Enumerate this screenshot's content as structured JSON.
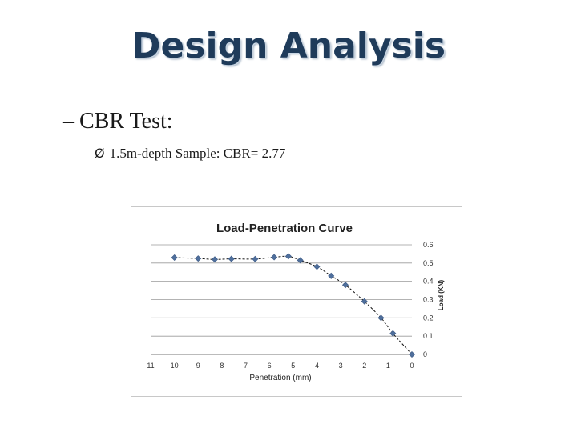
{
  "slide": {
    "title": "Design Analysis",
    "bullet_level1_marker": "–",
    "bullet_level1": "CBR Test:",
    "bullet_level2_marker": "Ø",
    "bullet_level2": "1.5m-depth Sample: CBR= 2.77"
  },
  "chart_data": {
    "type": "scatter",
    "title": "Load-Penetration Curve",
    "xlabel": "Penetration (mm)",
    "ylabel": "Load (KN)",
    "x_reversed": true,
    "y_axis_side": "right",
    "xlim": [
      0,
      11
    ],
    "ylim": [
      0,
      0.6
    ],
    "x_ticks": [
      0,
      1,
      2,
      3,
      4,
      5,
      6,
      7,
      8,
      9,
      10,
      11
    ],
    "y_ticks": [
      0,
      0.1,
      0.2,
      0.3,
      0.4,
      0.5,
      0.6
    ],
    "grid": "horizontal",
    "series": [
      {
        "marker": "diamond",
        "color": "#4f6f9c",
        "points": [
          [
            10.0,
            0.53
          ],
          [
            9.0,
            0.525
          ],
          [
            8.3,
            0.52
          ],
          [
            7.6,
            0.523
          ],
          [
            6.6,
            0.522
          ],
          [
            5.8,
            0.532
          ],
          [
            5.2,
            0.537
          ],
          [
            4.7,
            0.515
          ],
          [
            4.0,
            0.48
          ],
          [
            3.4,
            0.43
          ],
          [
            2.8,
            0.38
          ],
          [
            2.0,
            0.29
          ],
          [
            1.3,
            0.2
          ],
          [
            0.8,
            0.115
          ],
          [
            0.0,
            0.0
          ]
        ]
      }
    ],
    "trendline": {
      "style": "dashed",
      "color": "#111111"
    }
  }
}
